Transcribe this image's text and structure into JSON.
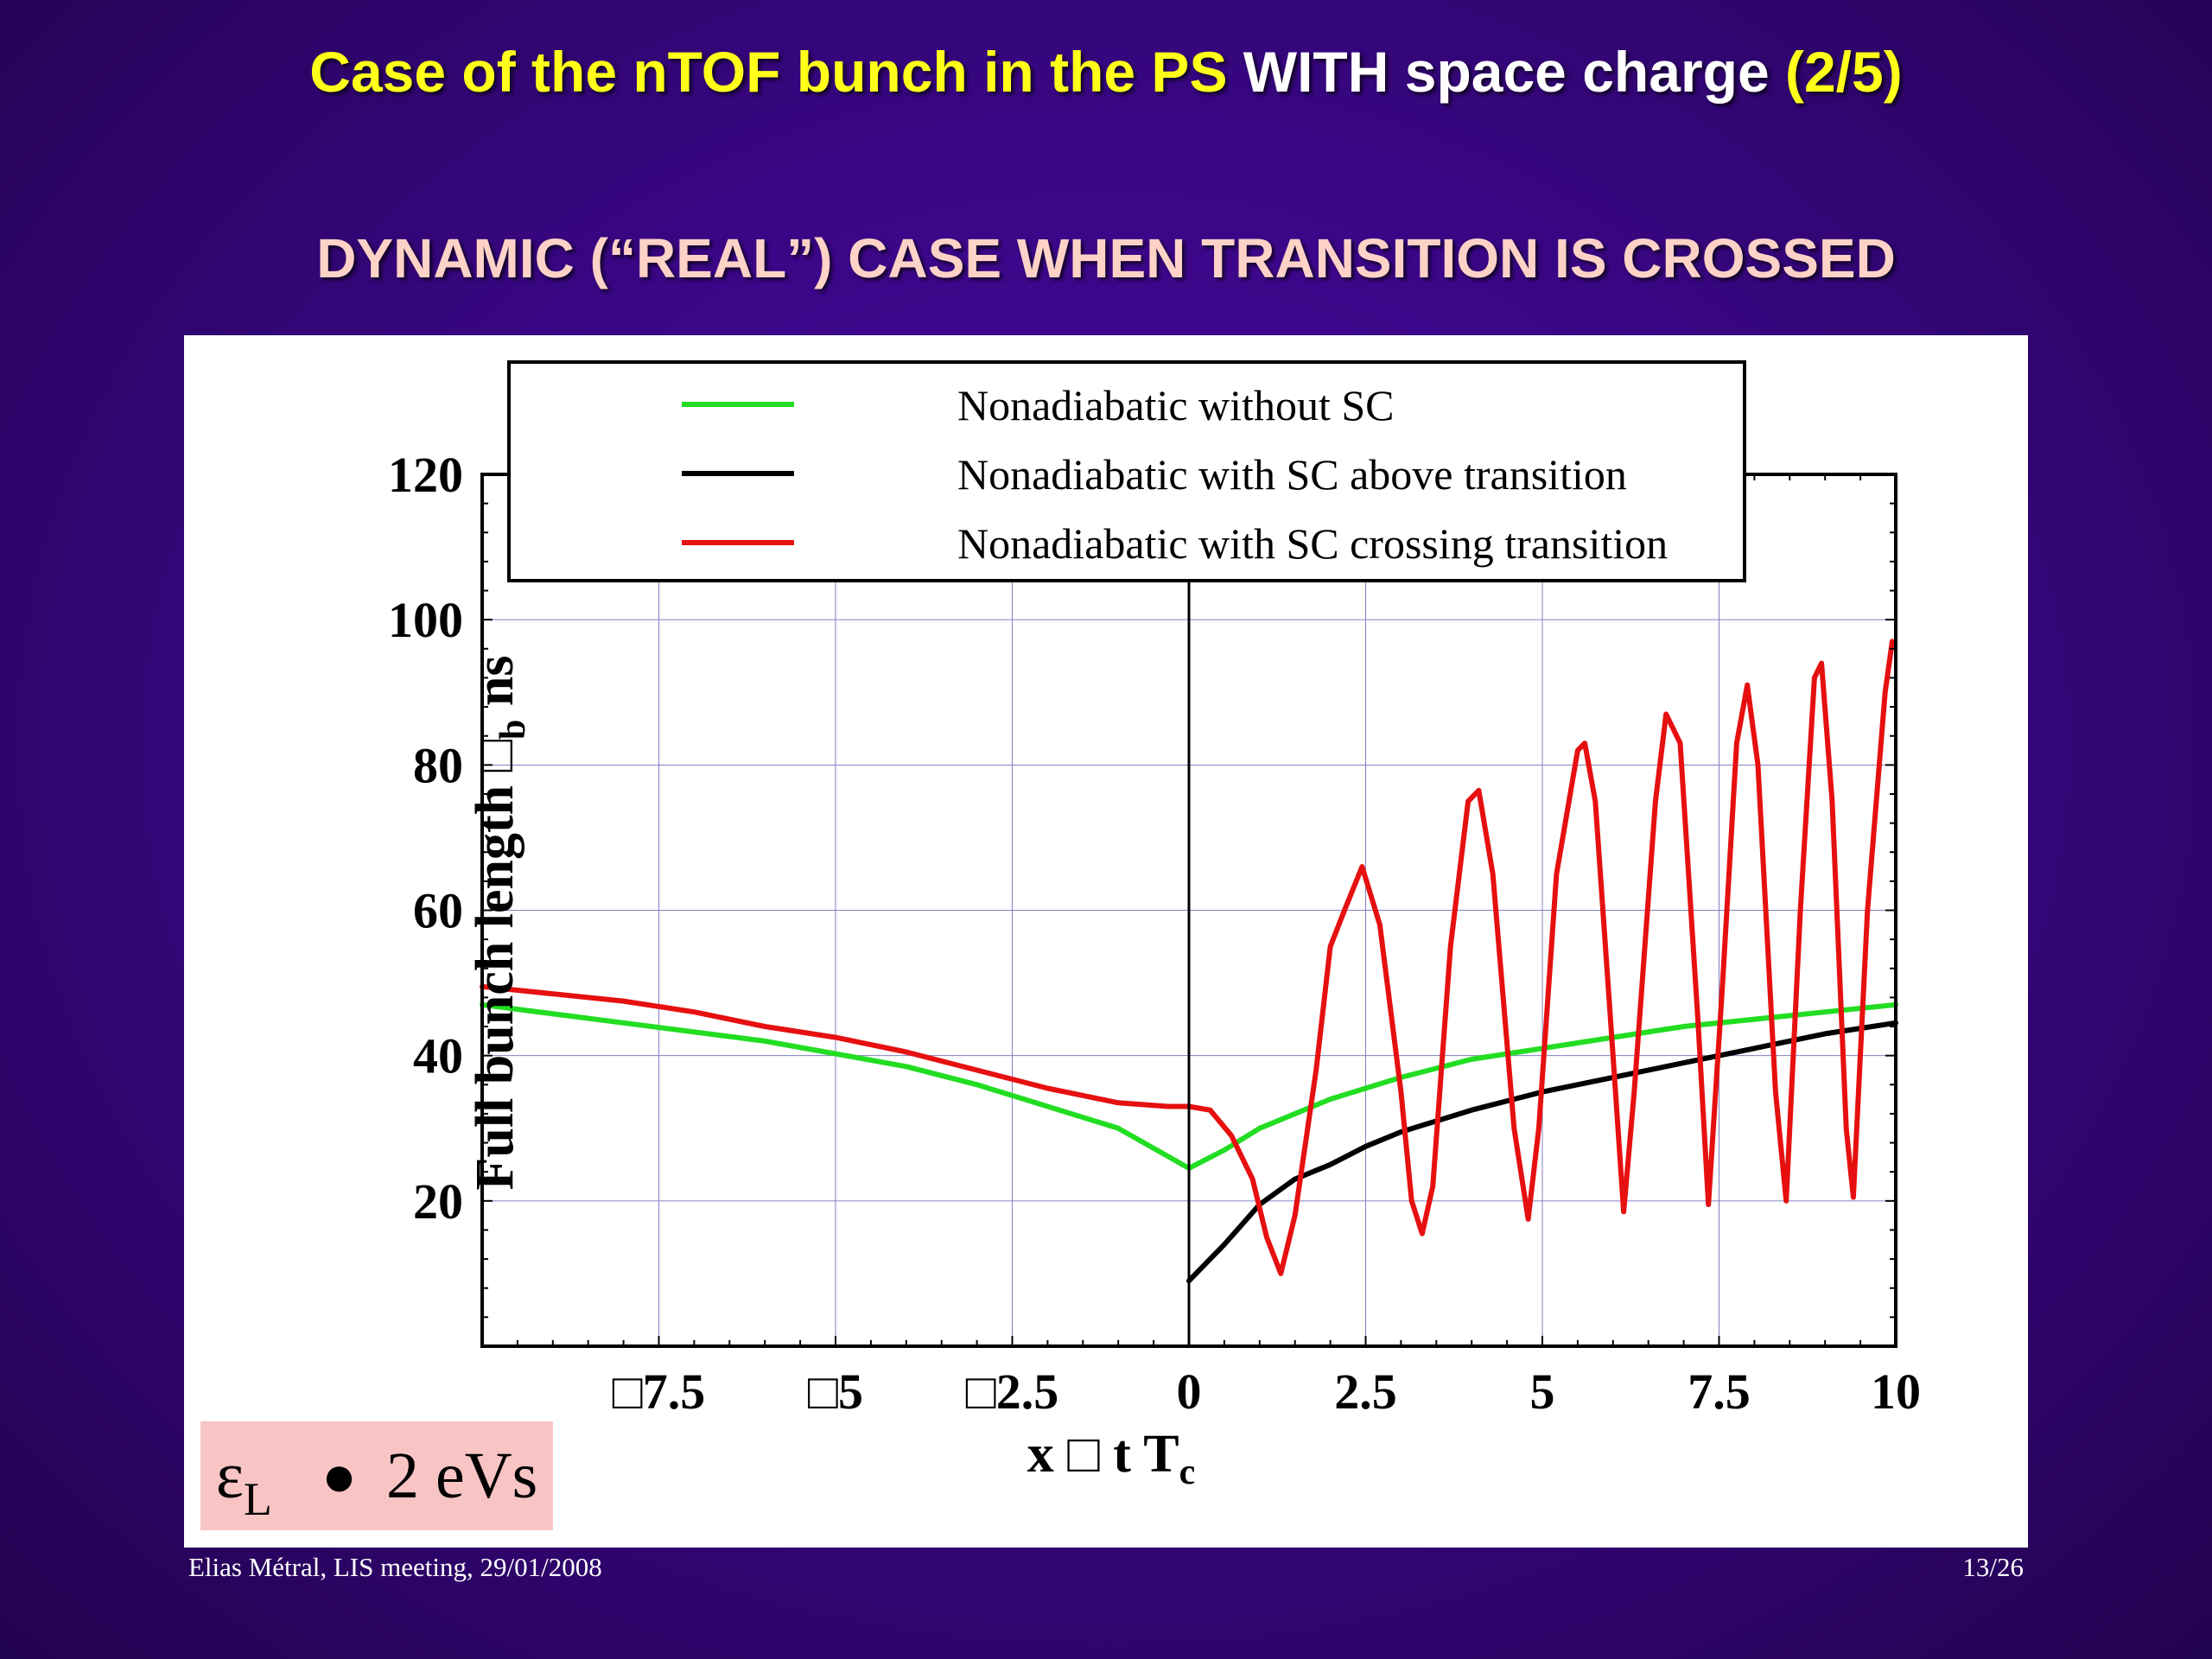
{
  "slide": {
    "title_part1": "Case of the nTOF bunch in the PS",
    "title_part2": " WITH space charge ",
    "title_part3": "(2/5)",
    "subtitle": "DYNAMIC (“REAL”) CASE WHEN TRANSITION IS CROSSED",
    "emittance_symbol": "ε",
    "emittance_sub": "L",
    "emittance_relation": "●",
    "emittance_value": "2 eVs",
    "footer_left": "Elias Métral, LIS meeting, 29/01/2008",
    "footer_right": "13/26"
  },
  "colors": {
    "title_yellow": "#ffff1a",
    "subtitle_pink": "#ffd2c8",
    "green_series": "#22dd22",
    "black_series": "#000000",
    "red_series": "#e61010",
    "grid": "#8080c0"
  },
  "chart_data": {
    "type": "line",
    "title": "",
    "xlabel_main": "x □ t",
    "xlabel_T": "T",
    "xlabel_sub": "c",
    "ylabel_main": "Full bunch length □",
    "ylabel_sub": "b",
    "ylabel_unit": "ns",
    "xlim": [
      -10,
      10
    ],
    "ylim": [
      0,
      120
    ],
    "x_ticks": [
      -7.5,
      -5,
      -2.5,
      0,
      2.5,
      5,
      7.5,
      10
    ],
    "x_tick_labels": [
      "□7.5",
      "□5",
      "□2.5",
      "0",
      "2.5",
      "5",
      "7.5",
      "10"
    ],
    "y_ticks": [
      20,
      40,
      60,
      80,
      100,
      120
    ],
    "y_tick_labels": [
      "20",
      "40",
      "60",
      "80",
      "100",
      "120"
    ],
    "grid": true,
    "legend_position": "top",
    "series": [
      {
        "name": "Nonadiabatic without SC",
        "color": "#22dd22",
        "x": [
          -10,
          -8,
          -6,
          -4,
          -3,
          -2,
          -1,
          0,
          0.5,
          1,
          2,
          3,
          4,
          5,
          6,
          7,
          8,
          9,
          10
        ],
        "y": [
          47,
          44.5,
          42,
          38.5,
          36,
          33,
          30,
          24.5,
          27,
          30,
          34,
          37,
          39.5,
          41,
          42.5,
          44,
          45,
          46,
          47
        ]
      },
      {
        "name": "Nonadiabatic with SC above transition",
        "color": "#000000",
        "x": [
          0,
          0.5,
          1,
          1.5,
          2,
          2.5,
          3,
          4,
          5,
          6,
          7,
          8,
          9,
          10
        ],
        "y": [
          9,
          14,
          19.5,
          23,
          25,
          27.5,
          29.5,
          32.5,
          35,
          37,
          39,
          41,
          43,
          44.5
        ]
      },
      {
        "name": "Nonadiabatic with SC crossing transition",
        "color": "#e61010",
        "x": [
          -10,
          -9,
          -8,
          -7,
          -6,
          -5,
          -4,
          -3,
          -2,
          -1,
          -0.3,
          0,
          0.3,
          0.6,
          0.9,
          1.1,
          1.3,
          1.5,
          1.8,
          2.0,
          2.2,
          2.45,
          2.7,
          3.0,
          3.15,
          3.3,
          3.45,
          3.7,
          3.95,
          4.1,
          4.3,
          4.6,
          4.8,
          4.95,
          5.2,
          5.5,
          5.6,
          5.75,
          6.0,
          6.15,
          6.3,
          6.6,
          6.75,
          6.95,
          7.2,
          7.35,
          7.55,
          7.75,
          7.9,
          8.05,
          8.3,
          8.45,
          8.65,
          8.85,
          8.95,
          9.1,
          9.3,
          9.4,
          9.6,
          9.85,
          9.95
        ],
        "y": [
          49.5,
          48.5,
          47.5,
          46,
          44,
          42.5,
          40.5,
          38,
          35.5,
          33.5,
          33,
          33,
          32.5,
          29,
          23,
          15,
          10,
          18,
          38,
          55,
          60,
          66,
          58,
          35,
          20,
          15.5,
          22,
          55,
          75,
          76.5,
          65,
          30,
          17.5,
          30,
          65,
          82,
          83,
          75,
          40,
          18.5,
          35,
          75,
          87,
          83,
          45,
          19.5,
          50,
          83,
          91,
          80,
          35,
          20,
          60,
          92,
          94,
          75,
          30,
          20.5,
          60,
          90,
          97
        ]
      }
    ]
  }
}
